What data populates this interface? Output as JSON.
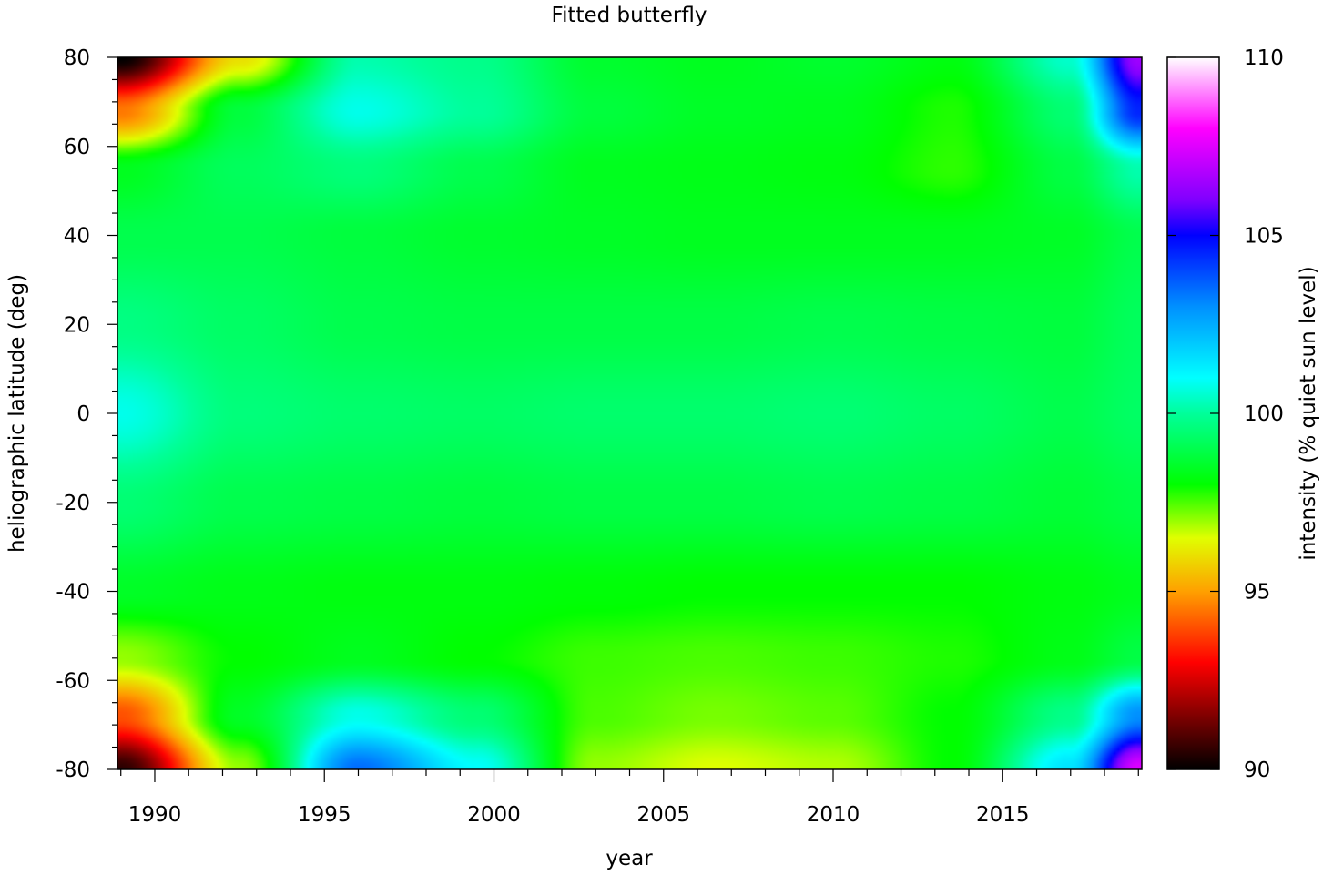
{
  "chart_data": {
    "type": "heatmap",
    "title": "Fitted butterfly",
    "xlabel": "year",
    "ylabel": "heliographic latitude (deg)",
    "colorbar_label": "intensity (% quiet sun level)",
    "xlim": [
      1988.9,
      2019.1
    ],
    "ylim": [
      -80,
      80
    ],
    "zlim": [
      90,
      110
    ],
    "x_ticks": [
      "1990",
      "1995",
      "2000",
      "2005",
      "2010",
      "2015"
    ],
    "y_ticks": [
      "80",
      "60",
      "40",
      "20",
      "0",
      "-20",
      "-40",
      "-60",
      "-80"
    ],
    "colorbar_ticks": [
      "110",
      "105",
      "100",
      "95",
      "90"
    ],
    "colormap": [
      {
        "value": 90,
        "color": "#000000"
      },
      {
        "value": 93,
        "color": "#ff0000"
      },
      {
        "value": 95,
        "color": "#ffa000"
      },
      {
        "value": 96.5,
        "color": "#e0ff00"
      },
      {
        "value": 98,
        "color": "#00ff00"
      },
      {
        "value": 100,
        "color": "#00ff9a"
      },
      {
        "value": 101,
        "color": "#00ffff"
      },
      {
        "value": 103,
        "color": "#0090ff"
      },
      {
        "value": 105,
        "color": "#0000ff"
      },
      {
        "value": 106,
        "color": "#8000ff"
      },
      {
        "value": 108,
        "color": "#ff00ff"
      },
      {
        "value": 110,
        "color": "#ffffff"
      }
    ],
    "grid_years": [
      1989,
      1992.5,
      1996,
      1999.5,
      2003,
      2006.5,
      2010,
      2013.5,
      2017,
      2019
    ],
    "grid_latitudes": [
      80,
      68,
      55,
      40,
      20,
      0,
      -20,
      -40,
      -55,
      -68,
      -80
    ],
    "values": [
      [
        90.0,
        96.0,
        100.2,
        99.8,
        98.6,
        98.4,
        98.6,
        98.2,
        100.5,
        106.5
      ],
      [
        94.5,
        98.8,
        100.8,
        100.0,
        98.8,
        98.5,
        98.4,
        97.8,
        99.5,
        104.5
      ],
      [
        98.4,
        99.2,
        99.6,
        99.0,
        98.4,
        98.3,
        98.2,
        97.7,
        98.9,
        100.2
      ],
      [
        99.0,
        99.0,
        98.8,
        98.6,
        98.5,
        98.4,
        98.4,
        98.4,
        98.5,
        99.0
      ],
      [
        99.7,
        99.3,
        99.0,
        98.9,
        98.9,
        98.9,
        99.0,
        98.9,
        98.8,
        99.2
      ],
      [
        100.8,
        99.6,
        99.4,
        99.3,
        99.4,
        99.4,
        99.5,
        99.3,
        99.0,
        99.3
      ],
      [
        99.5,
        99.0,
        98.9,
        98.8,
        98.9,
        98.9,
        99.0,
        98.9,
        98.7,
        98.9
      ],
      [
        98.5,
        98.3,
        98.2,
        98.2,
        98.1,
        98.0,
        98.0,
        98.0,
        98.2,
        98.4
      ],
      [
        97.0,
        98.0,
        98.4,
        98.0,
        97.6,
        97.5,
        97.6,
        97.8,
        98.3,
        98.9
      ],
      [
        94.0,
        98.5,
        100.8,
        99.5,
        97.5,
        97.2,
        97.4,
        98.0,
        99.8,
        103.0
      ],
      [
        90.5,
        97.0,
        103.5,
        101.0,
        97.0,
        96.5,
        96.8,
        98.0,
        101.5,
        107.5
      ]
    ]
  }
}
